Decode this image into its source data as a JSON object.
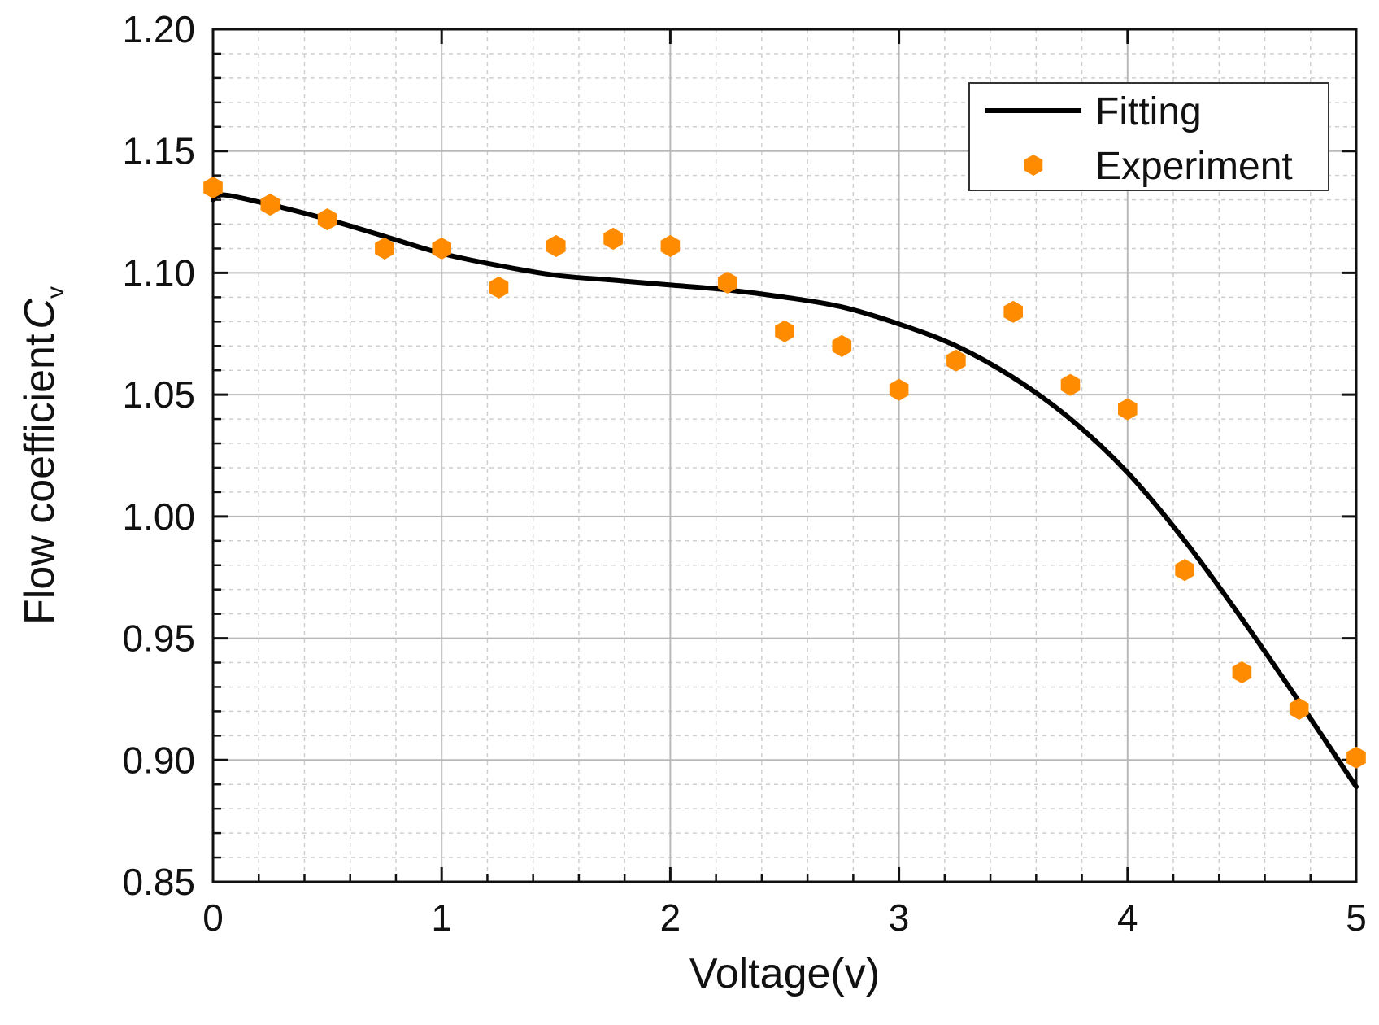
{
  "chart_data": {
    "type": "scatter",
    "title": "",
    "xlabel": "Voltage(v)",
    "ylabel": "Flow coefficient",
    "ylabel_symbol": "C",
    "ylabel_subscript": "v",
    "xlim": [
      0,
      5
    ],
    "ylim": [
      0.85,
      1.2
    ],
    "x_ticks": [
      0,
      1,
      2,
      3,
      4,
      5
    ],
    "x_tick_labels": [
      "0",
      "1",
      "2",
      "3",
      "4",
      "5"
    ],
    "y_ticks": [
      0.85,
      0.9,
      0.95,
      1.0,
      1.05,
      1.1,
      1.15,
      1.2
    ],
    "y_tick_labels": [
      "0.85",
      "0.90",
      "0.95",
      "1.00",
      "1.05",
      "1.10",
      "1.15",
      "1.20"
    ],
    "x_minor_step": 0.2,
    "y_minor_step": 0.01,
    "grid": true,
    "legend_position": "top-right",
    "series": [
      {
        "name": "Fitting",
        "kind": "line",
        "color": "#000000",
        "x": [
          0,
          0.05,
          0.25,
          0.5,
          0.75,
          1.0,
          1.25,
          1.5,
          1.75,
          2.0,
          2.25,
          2.5,
          2.75,
          3.0,
          3.25,
          3.5,
          3.75,
          4.0,
          4.25,
          4.5,
          4.75,
          5.0
        ],
        "y": [
          1.13,
          1.132,
          1.128,
          1.122,
          1.115,
          1.108,
          1.103,
          1.099,
          1.097,
          1.095,
          1.093,
          1.09,
          1.086,
          1.079,
          1.07,
          1.057,
          1.04,
          1.018,
          0.99,
          0.958,
          0.924,
          0.889
        ]
      },
      {
        "name": "Experiment",
        "kind": "scatter",
        "marker": "hexagon",
        "color": "#FF8C00",
        "x": [
          0,
          0.25,
          0.5,
          0.75,
          1.0,
          1.25,
          1.5,
          1.75,
          2.0,
          2.25,
          2.5,
          2.75,
          3.0,
          3.25,
          3.5,
          3.75,
          4.0,
          4.25,
          4.5,
          4.75,
          5.0
        ],
        "y": [
          1.135,
          1.128,
          1.122,
          1.11,
          1.11,
          1.094,
          1.111,
          1.114,
          1.111,
          1.096,
          1.076,
          1.07,
          1.052,
          1.064,
          1.084,
          1.054,
          1.044,
          0.978,
          0.936,
          0.921,
          0.901
        ]
      }
    ]
  }
}
